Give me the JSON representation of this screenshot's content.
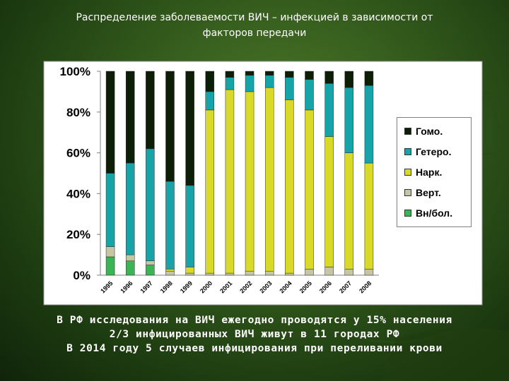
{
  "title_line1": "Распределение заболеваемости ВИЧ – инфекцией в зависимости от",
  "title_line2": "факторов передачи",
  "colors": {
    "homo": "#0d1e06",
    "hetero": "#16a4a8",
    "nark": "#d9d92a",
    "vert": "#c6c6a4",
    "vnbol": "#39b554",
    "plot_bg": "#ffffff",
    "axis": "#808080"
  },
  "chart_data": {
    "type": "bar",
    "stacked": true,
    "percent": true,
    "categories": [
      "1995",
      "1996",
      "1997",
      "1998",
      "1999",
      "2000",
      "2001",
      "2002",
      "2003",
      "2004",
      "2005",
      "2006",
      "2007",
      "2008"
    ],
    "y_ticks": [
      "0%",
      "20%",
      "40%",
      "60%",
      "80%",
      "100%"
    ],
    "ylim": [
      0,
      100
    ],
    "legend_position": "right",
    "series": [
      {
        "name": "Вн/бол.",
        "key": "vnbol",
        "values": [
          9,
          7,
          5,
          0,
          0,
          0,
          0,
          0,
          0,
          0,
          0,
          0,
          0,
          0
        ]
      },
      {
        "name": "Верт.",
        "key": "vert",
        "values": [
          5,
          3,
          2,
          2,
          1,
          1,
          1,
          2,
          2,
          1,
          3,
          4,
          3,
          3
        ]
      },
      {
        "name": "Нарк.",
        "key": "nark",
        "values": [
          0,
          0,
          0,
          1,
          3,
          80,
          90,
          88,
          90,
          85,
          78,
          64,
          57,
          52
        ]
      },
      {
        "name": "Гетеро.",
        "key": "hetero",
        "values": [
          36,
          45,
          55,
          43,
          40,
          9,
          6,
          8,
          6,
          11,
          15,
          26,
          32,
          38
        ]
      },
      {
        "name": "Гомо.",
        "key": "homo",
        "values": [
          50,
          45,
          38,
          54,
          56,
          10,
          3,
          2,
          2,
          3,
          4,
          6,
          8,
          7
        ]
      }
    ]
  },
  "legend": [
    {
      "label": "Гомо.",
      "key": "homo"
    },
    {
      "label": "Гетеро.",
      "key": "hetero"
    },
    {
      "label": "Нарк.",
      "key": "nark"
    },
    {
      "label": "Верт.",
      "key": "vert"
    },
    {
      "label": "Вн/бол.",
      "key": "vnbol"
    }
  ],
  "footer": {
    "line1": "В РФ исследования на ВИЧ ежегодно проводятся у 15% населения",
    "line2": "2/3 инфицированных ВИЧ живут в 11 городах РФ",
    "line3": "В 2014 году 5 случаев инфицирования при переливании крови"
  }
}
